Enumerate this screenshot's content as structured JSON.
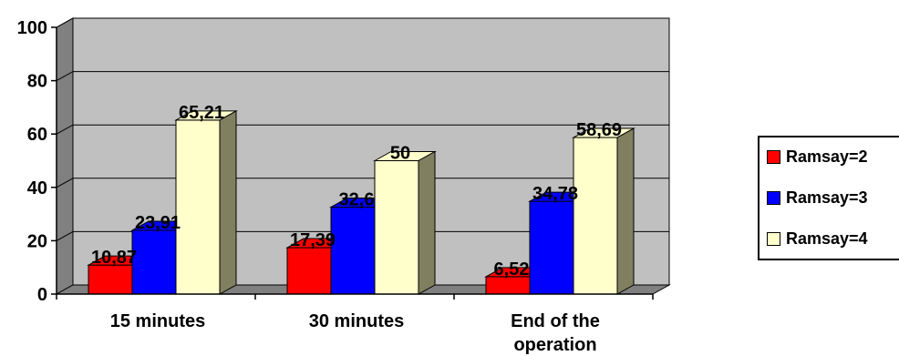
{
  "chart_data": {
    "type": "bar",
    "categories": [
      "15 minutes",
      "30 minutes",
      "End of the operation"
    ],
    "category_lines": [
      [
        "15 minutes"
      ],
      [
        "30 minutes"
      ],
      [
        "End of the",
        "operation"
      ]
    ],
    "series": [
      {
        "name": "Ramsay=2",
        "values": [
          10.87,
          17.39,
          6.52
        ],
        "labels": [
          "10,87",
          "17,39",
          "6,52"
        ],
        "color": "#ff0000"
      },
      {
        "name": "Ramsay=3",
        "values": [
          23.91,
          32.6,
          34.78
        ],
        "labels": [
          "23,91",
          "32,6",
          "34,78"
        ],
        "color": "#0000ff"
      },
      {
        "name": "Ramsay=4",
        "values": [
          65.21,
          50,
          58.69
        ],
        "labels": [
          "65,21",
          "50",
          "58,69"
        ],
        "color": "#ffffcc"
      }
    ],
    "ylim": [
      0,
      100
    ],
    "yticks": [
      "0",
      "20",
      "40",
      "60",
      "80",
      "100"
    ],
    "grid": true,
    "three_d": true,
    "legend_position": "right",
    "colors": {
      "plot_background": "#c0c0c0",
      "wall_side": "#808080",
      "floor": "#808080",
      "bar_side": "#808060"
    }
  }
}
